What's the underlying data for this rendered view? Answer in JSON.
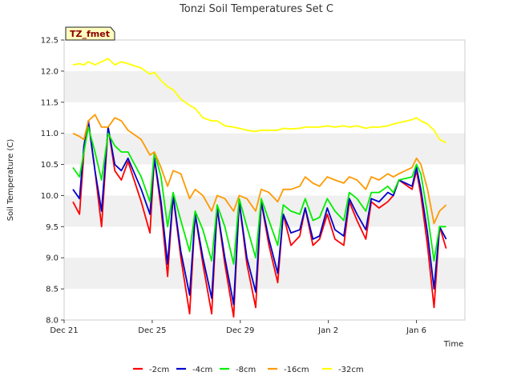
{
  "chart_data": {
    "type": "line",
    "title": "Tonzi Soil Temperatures Set C",
    "badge": "TZ_fmet",
    "xlabel": "Time",
    "ylabel": "Soil Temperature (C)",
    "xlim": [
      0,
      18.2
    ],
    "ylim": [
      8.0,
      12.5
    ],
    "yticks": [
      8.0,
      8.5,
      9.0,
      9.5,
      10.0,
      10.5,
      11.0,
      11.5,
      12.0,
      12.5
    ],
    "xticks": [
      {
        "day": 0,
        "label": "Dec 21"
      },
      {
        "day": 4,
        "label": "Dec 25"
      },
      {
        "day": 8,
        "label": "Dec 29"
      },
      {
        "day": 12,
        "label": "Jan 2"
      },
      {
        "day": 16,
        "label": "Jan 6"
      }
    ],
    "grid_bands": true,
    "legend_position": "bottom",
    "series": [
      {
        "name": "-2cm",
        "color": "#ff0000",
        "points": [
          [
            0.4,
            9.9
          ],
          [
            0.7,
            9.7
          ],
          [
            0.9,
            10.7
          ],
          [
            1.1,
            11.2
          ],
          [
            1.4,
            10.4
          ],
          [
            1.7,
            9.5
          ],
          [
            2.0,
            11.1
          ],
          [
            2.3,
            10.4
          ],
          [
            2.6,
            10.25
          ],
          [
            2.9,
            10.55
          ],
          [
            3.5,
            9.9
          ],
          [
            3.9,
            9.4
          ],
          [
            4.1,
            10.6
          ],
          [
            4.4,
            9.8
          ],
          [
            4.7,
            8.7
          ],
          [
            4.95,
            10.0
          ],
          [
            5.3,
            9.0
          ],
          [
            5.7,
            8.1
          ],
          [
            5.95,
            9.7
          ],
          [
            6.3,
            8.9
          ],
          [
            6.7,
            8.1
          ],
          [
            6.95,
            9.8
          ],
          [
            7.3,
            8.9
          ],
          [
            7.7,
            8.05
          ],
          [
            7.95,
            9.9
          ],
          [
            8.3,
            8.9
          ],
          [
            8.7,
            8.2
          ],
          [
            8.95,
            9.9
          ],
          [
            9.3,
            9.2
          ],
          [
            9.7,
            8.6
          ],
          [
            9.95,
            9.7
          ],
          [
            10.3,
            9.2
          ],
          [
            10.7,
            9.35
          ],
          [
            10.95,
            9.8
          ],
          [
            11.3,
            9.2
          ],
          [
            11.6,
            9.3
          ],
          [
            11.95,
            9.7
          ],
          [
            12.3,
            9.3
          ],
          [
            12.7,
            9.2
          ],
          [
            12.95,
            9.9
          ],
          [
            13.3,
            9.6
          ],
          [
            13.7,
            9.3
          ],
          [
            13.95,
            9.9
          ],
          [
            14.3,
            9.8
          ],
          [
            14.7,
            9.9
          ],
          [
            14.95,
            10.0
          ],
          [
            15.2,
            10.25
          ],
          [
            15.8,
            10.1
          ],
          [
            16.0,
            10.4
          ],
          [
            16.2,
            10.0
          ],
          [
            16.5,
            9.2
          ],
          [
            16.8,
            8.2
          ],
          [
            17.05,
            9.5
          ],
          [
            17.35,
            9.15
          ]
        ]
      },
      {
        "name": "-4cm",
        "color": "#0000cc",
        "points": [
          [
            0.4,
            10.1
          ],
          [
            0.7,
            9.95
          ],
          [
            0.9,
            10.8
          ],
          [
            1.1,
            11.2
          ],
          [
            1.4,
            10.4
          ],
          [
            1.7,
            9.75
          ],
          [
            2.0,
            11.1
          ],
          [
            2.3,
            10.5
          ],
          [
            2.6,
            10.4
          ],
          [
            2.9,
            10.6
          ],
          [
            3.5,
            10.1
          ],
          [
            3.9,
            9.7
          ],
          [
            4.1,
            10.6
          ],
          [
            4.4,
            9.9
          ],
          [
            4.7,
            8.9
          ],
          [
            4.95,
            10.0
          ],
          [
            5.3,
            9.1
          ],
          [
            5.7,
            8.4
          ],
          [
            5.95,
            9.7
          ],
          [
            6.3,
            9.0
          ],
          [
            6.7,
            8.35
          ],
          [
            6.95,
            9.8
          ],
          [
            7.3,
            9.0
          ],
          [
            7.7,
            8.25
          ],
          [
            7.95,
            9.9
          ],
          [
            8.3,
            9.0
          ],
          [
            8.7,
            8.45
          ],
          [
            8.95,
            9.9
          ],
          [
            9.3,
            9.3
          ],
          [
            9.7,
            8.75
          ],
          [
            9.95,
            9.7
          ],
          [
            10.3,
            9.4
          ],
          [
            10.7,
            9.45
          ],
          [
            10.95,
            9.8
          ],
          [
            11.3,
            9.3
          ],
          [
            11.6,
            9.35
          ],
          [
            11.95,
            9.8
          ],
          [
            12.3,
            9.45
          ],
          [
            12.7,
            9.35
          ],
          [
            12.95,
            9.95
          ],
          [
            13.3,
            9.7
          ],
          [
            13.7,
            9.45
          ],
          [
            13.95,
            9.95
          ],
          [
            14.3,
            9.9
          ],
          [
            14.7,
            10.05
          ],
          [
            14.95,
            10.0
          ],
          [
            15.2,
            10.25
          ],
          [
            15.8,
            10.15
          ],
          [
            16.0,
            10.45
          ],
          [
            16.2,
            10.1
          ],
          [
            16.5,
            9.4
          ],
          [
            16.8,
            8.5
          ],
          [
            17.05,
            9.5
          ],
          [
            17.35,
            9.3
          ]
        ]
      },
      {
        "name": "-8cm",
        "color": "#00ee00",
        "points": [
          [
            0.4,
            10.45
          ],
          [
            0.7,
            10.3
          ],
          [
            0.9,
            10.7
          ],
          [
            1.1,
            11.1
          ],
          [
            1.4,
            10.7
          ],
          [
            1.7,
            10.25
          ],
          [
            2.0,
            11.0
          ],
          [
            2.3,
            10.8
          ],
          [
            2.6,
            10.7
          ],
          [
            2.9,
            10.7
          ],
          [
            3.5,
            10.3
          ],
          [
            3.9,
            9.9
          ],
          [
            4.1,
            10.7
          ],
          [
            4.4,
            10.3
          ],
          [
            4.7,
            9.5
          ],
          [
            4.95,
            10.05
          ],
          [
            5.3,
            9.6
          ],
          [
            5.7,
            9.1
          ],
          [
            5.95,
            9.75
          ],
          [
            6.3,
            9.45
          ],
          [
            6.7,
            8.95
          ],
          [
            6.95,
            9.85
          ],
          [
            7.3,
            9.5
          ],
          [
            7.7,
            8.9
          ],
          [
            7.95,
            9.95
          ],
          [
            8.3,
            9.5
          ],
          [
            8.7,
            9.0
          ],
          [
            8.95,
            9.95
          ],
          [
            9.3,
            9.6
          ],
          [
            9.7,
            9.2
          ],
          [
            9.95,
            9.85
          ],
          [
            10.3,
            9.75
          ],
          [
            10.7,
            9.7
          ],
          [
            10.95,
            9.95
          ],
          [
            11.3,
            9.6
          ],
          [
            11.6,
            9.65
          ],
          [
            11.95,
            9.95
          ],
          [
            12.3,
            9.75
          ],
          [
            12.7,
            9.6
          ],
          [
            12.95,
            10.05
          ],
          [
            13.3,
            9.95
          ],
          [
            13.7,
            9.75
          ],
          [
            13.95,
            10.05
          ],
          [
            14.3,
            10.05
          ],
          [
            14.7,
            10.15
          ],
          [
            14.95,
            10.05
          ],
          [
            15.2,
            10.25
          ],
          [
            15.8,
            10.3
          ],
          [
            16.0,
            10.5
          ],
          [
            16.2,
            10.35
          ],
          [
            16.5,
            9.7
          ],
          [
            16.8,
            8.95
          ],
          [
            17.05,
            9.5
          ],
          [
            17.35,
            9.5
          ]
        ]
      },
      {
        "name": "-16cm",
        "color": "#ff9900",
        "points": [
          [
            0.4,
            11.0
          ],
          [
            0.7,
            10.95
          ],
          [
            0.9,
            10.9
          ],
          [
            1.1,
            11.2
          ],
          [
            1.4,
            11.3
          ],
          [
            1.7,
            11.1
          ],
          [
            2.0,
            11.1
          ],
          [
            2.3,
            11.25
          ],
          [
            2.6,
            11.2
          ],
          [
            2.9,
            11.05
          ],
          [
            3.5,
            10.9
          ],
          [
            3.9,
            10.65
          ],
          [
            4.1,
            10.7
          ],
          [
            4.4,
            10.45
          ],
          [
            4.7,
            10.15
          ],
          [
            4.95,
            10.4
          ],
          [
            5.3,
            10.35
          ],
          [
            5.7,
            9.95
          ],
          [
            5.95,
            10.1
          ],
          [
            6.3,
            10.0
          ],
          [
            6.7,
            9.75
          ],
          [
            6.95,
            10.0
          ],
          [
            7.3,
            9.95
          ],
          [
            7.7,
            9.75
          ],
          [
            7.95,
            10.0
          ],
          [
            8.3,
            9.95
          ],
          [
            8.7,
            9.75
          ],
          [
            8.95,
            10.1
          ],
          [
            9.3,
            10.05
          ],
          [
            9.7,
            9.9
          ],
          [
            9.95,
            10.1
          ],
          [
            10.3,
            10.1
          ],
          [
            10.7,
            10.15
          ],
          [
            10.95,
            10.3
          ],
          [
            11.3,
            10.2
          ],
          [
            11.6,
            10.15
          ],
          [
            11.95,
            10.3
          ],
          [
            12.3,
            10.25
          ],
          [
            12.7,
            10.2
          ],
          [
            12.95,
            10.3
          ],
          [
            13.3,
            10.25
          ],
          [
            13.7,
            10.1
          ],
          [
            13.95,
            10.3
          ],
          [
            14.3,
            10.25
          ],
          [
            14.7,
            10.35
          ],
          [
            14.95,
            10.3
          ],
          [
            15.2,
            10.35
          ],
          [
            15.8,
            10.45
          ],
          [
            16.0,
            10.6
          ],
          [
            16.2,
            10.5
          ],
          [
            16.5,
            10.1
          ],
          [
            16.8,
            9.55
          ],
          [
            17.05,
            9.75
          ],
          [
            17.35,
            9.85
          ]
        ]
      },
      {
        "name": "-32cm",
        "color": "#ffff00",
        "points": [
          [
            0.4,
            12.1
          ],
          [
            0.7,
            12.12
          ],
          [
            0.9,
            12.1
          ],
          [
            1.1,
            12.15
          ],
          [
            1.4,
            12.1
          ],
          [
            1.7,
            12.15
          ],
          [
            2.0,
            12.2
          ],
          [
            2.3,
            12.1
          ],
          [
            2.6,
            12.15
          ],
          [
            2.9,
            12.12
          ],
          [
            3.5,
            12.05
          ],
          [
            3.9,
            11.95
          ],
          [
            4.1,
            11.98
          ],
          [
            4.4,
            11.85
          ],
          [
            4.7,
            11.75
          ],
          [
            4.95,
            11.7
          ],
          [
            5.3,
            11.55
          ],
          [
            5.7,
            11.45
          ],
          [
            5.95,
            11.4
          ],
          [
            6.3,
            11.25
          ],
          [
            6.7,
            11.2
          ],
          [
            6.95,
            11.2
          ],
          [
            7.3,
            11.12
          ],
          [
            7.7,
            11.1
          ],
          [
            7.95,
            11.08
          ],
          [
            8.3,
            11.05
          ],
          [
            8.7,
            11.03
          ],
          [
            8.95,
            11.05
          ],
          [
            9.3,
            11.05
          ],
          [
            9.7,
            11.05
          ],
          [
            9.95,
            11.08
          ],
          [
            10.3,
            11.07
          ],
          [
            10.7,
            11.08
          ],
          [
            10.95,
            11.1
          ],
          [
            11.3,
            11.1
          ],
          [
            11.6,
            11.1
          ],
          [
            11.95,
            11.12
          ],
          [
            12.3,
            11.1
          ],
          [
            12.7,
            11.12
          ],
          [
            12.95,
            11.1
          ],
          [
            13.3,
            11.12
          ],
          [
            13.7,
            11.08
          ],
          [
            13.95,
            11.1
          ],
          [
            14.3,
            11.1
          ],
          [
            14.7,
            11.12
          ],
          [
            14.95,
            11.15
          ],
          [
            15.2,
            11.17
          ],
          [
            15.8,
            11.22
          ],
          [
            16.0,
            11.25
          ],
          [
            16.2,
            11.2
          ],
          [
            16.5,
            11.15
          ],
          [
            16.8,
            11.05
          ],
          [
            17.05,
            10.9
          ],
          [
            17.35,
            10.85
          ]
        ]
      }
    ]
  }
}
